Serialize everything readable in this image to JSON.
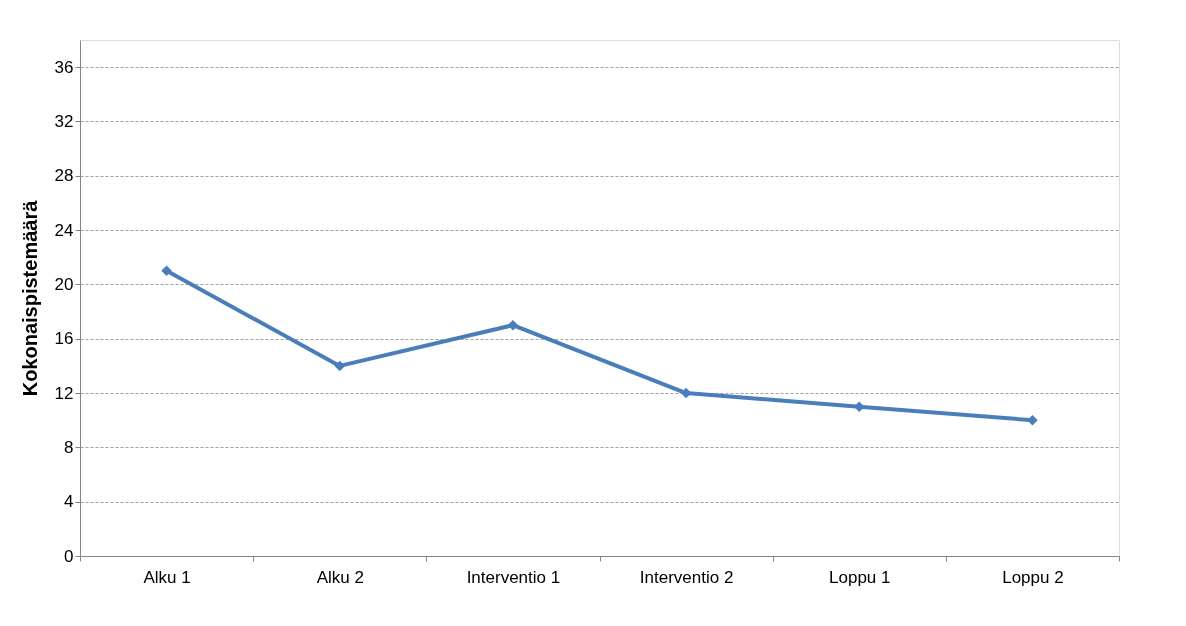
{
  "chart_data": {
    "type": "line",
    "ylabel": "Kokonaispistemäärä",
    "categories": [
      "Alku 1",
      "Alku 2",
      "Interventio 1",
      "Interventio 2",
      "Loppu 1",
      "Loppu 2"
    ],
    "series": [
      {
        "color": "#4a7ebb",
        "values": [
          21,
          14,
          17,
          12,
          11,
          10
        ]
      }
    ],
    "ylim": [
      0,
      38
    ],
    "yticks": [
      0,
      4,
      8,
      12,
      16,
      20,
      24,
      28,
      32,
      36
    ],
    "grid": "y",
    "marker": "diamond",
    "line_style": "solid"
  }
}
